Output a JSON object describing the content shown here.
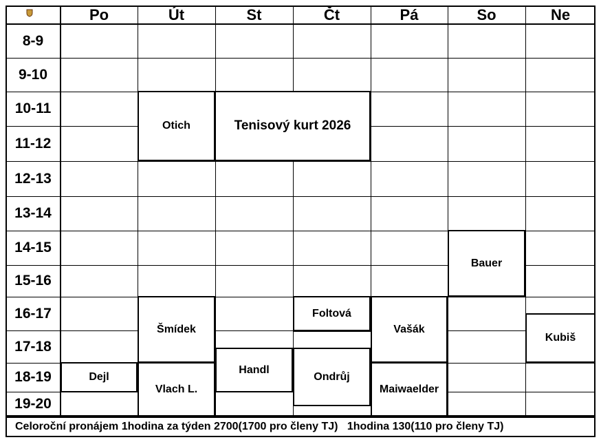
{
  "days": [
    "Po",
    "Út",
    "St",
    "Čt",
    "Pá",
    "So",
    "Ne"
  ],
  "times": [
    "8-9",
    "9-10",
    "10-11",
    "11-12",
    "12-13",
    "13-14",
    "14-15",
    "15-16",
    "16-17",
    "17-18",
    "18-19",
    "19-20"
  ],
  "bookings": [
    {
      "label": "Otich"
    },
    {
      "label": "Tenisový kurt 2026"
    },
    {
      "label": "Bauer"
    },
    {
      "label": "Šmídek"
    },
    {
      "label": "Foltová"
    },
    {
      "label": "Vašák"
    },
    {
      "label": "Kubiš"
    },
    {
      "label": "Dejl"
    },
    {
      "label": "Vlach L."
    },
    {
      "label": "Handl"
    },
    {
      "label": "Ondrůj"
    },
    {
      "label": "Maiwaelder"
    }
  ],
  "footer": "Celoroční pronájem 1hodina za týden 2700(1700 pro členy TJ)   1hodina 130(110 pro členy TJ)"
}
